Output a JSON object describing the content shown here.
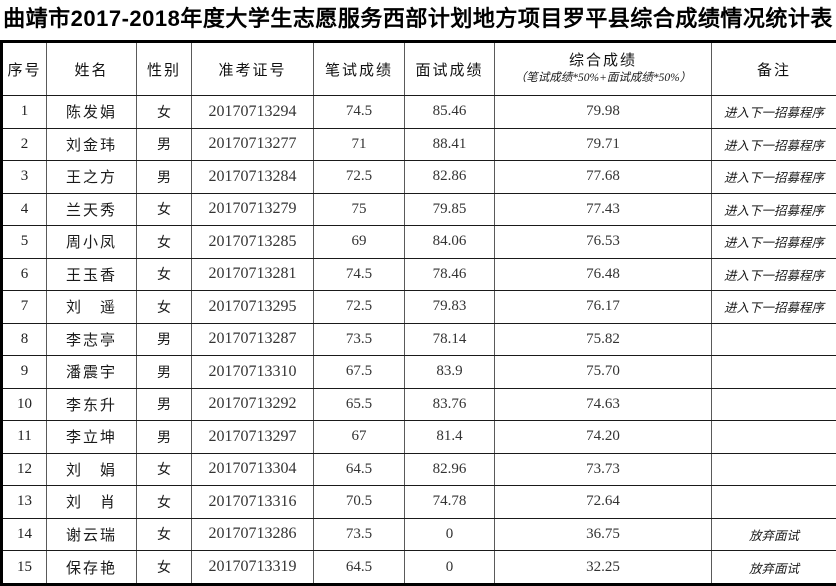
{
  "title": "曲靖市2017-2018年度大学生志愿服务西部计划地方项目罗平县综合成绩情况统计表",
  "table": {
    "headers": {
      "seq": "序号",
      "name": "姓名",
      "gender": "性别",
      "exam_id": "准考证号",
      "written": "笔试成绩",
      "interview": "面试成绩",
      "composite": "综合成绩",
      "composite_note": "（笔试成绩*50%+面试成绩*50%）",
      "remark": "备注"
    },
    "rows": [
      {
        "seq": "1",
        "name": "陈发娟",
        "gender": "女",
        "exam_id": "20170713294",
        "written": "74.5",
        "interview": "85.46",
        "composite": "79.98",
        "remark": "进入下一招募程序"
      },
      {
        "seq": "2",
        "name": "刘金玮",
        "gender": "男",
        "exam_id": "20170713277",
        "written": "71",
        "interview": "88.41",
        "composite": "79.71",
        "remark": "进入下一招募程序"
      },
      {
        "seq": "3",
        "name": "王之方",
        "gender": "男",
        "exam_id": "20170713284",
        "written": "72.5",
        "interview": "82.86",
        "composite": "77.68",
        "remark": "进入下一招募程序"
      },
      {
        "seq": "4",
        "name": "兰天秀",
        "gender": "女",
        "exam_id": "20170713279",
        "written": "75",
        "interview": "79.85",
        "composite": "77.43",
        "remark": "进入下一招募程序"
      },
      {
        "seq": "5",
        "name": "周小凤",
        "gender": "女",
        "exam_id": "20170713285",
        "written": "69",
        "interview": "84.06",
        "composite": "76.53",
        "remark": "进入下一招募程序"
      },
      {
        "seq": "6",
        "name": "王玉香",
        "gender": "女",
        "exam_id": "20170713281",
        "written": "74.5",
        "interview": "78.46",
        "composite": "76.48",
        "remark": "进入下一招募程序"
      },
      {
        "seq": "7",
        "name": "刘　遥",
        "gender": "女",
        "exam_id": "20170713295",
        "written": "72.5",
        "interview": "79.83",
        "composite": "76.17",
        "remark": "进入下一招募程序"
      },
      {
        "seq": "8",
        "name": "李志亭",
        "gender": "男",
        "exam_id": "20170713287",
        "written": "73.5",
        "interview": "78.14",
        "composite": "75.82",
        "remark": ""
      },
      {
        "seq": "9",
        "name": "潘震宇",
        "gender": "男",
        "exam_id": "20170713310",
        "written": "67.5",
        "interview": "83.9",
        "composite": "75.70",
        "remark": ""
      },
      {
        "seq": "10",
        "name": "李东升",
        "gender": "男",
        "exam_id": "20170713292",
        "written": "65.5",
        "interview": "83.76",
        "composite": "74.63",
        "remark": ""
      },
      {
        "seq": "11",
        "name": "李立坤",
        "gender": "男",
        "exam_id": "20170713297",
        "written": "67",
        "interview": "81.4",
        "composite": "74.20",
        "remark": ""
      },
      {
        "seq": "12",
        "name": "刘　娟",
        "gender": "女",
        "exam_id": "20170713304",
        "written": "64.5",
        "interview": "82.96",
        "composite": "73.73",
        "remark": ""
      },
      {
        "seq": "13",
        "name": "刘　肖",
        "gender": "女",
        "exam_id": "20170713316",
        "written": "70.5",
        "interview": "74.78",
        "composite": "72.64",
        "remark": ""
      },
      {
        "seq": "14",
        "name": "谢云瑞",
        "gender": "女",
        "exam_id": "20170713286",
        "written": "73.5",
        "interview": "0",
        "composite": "36.75",
        "remark": "放弃面试"
      },
      {
        "seq": "15",
        "name": "保存艳",
        "gender": "女",
        "exam_id": "20170713319",
        "written": "64.5",
        "interview": "0",
        "composite": "32.25",
        "remark": "放弃面试"
      }
    ]
  }
}
